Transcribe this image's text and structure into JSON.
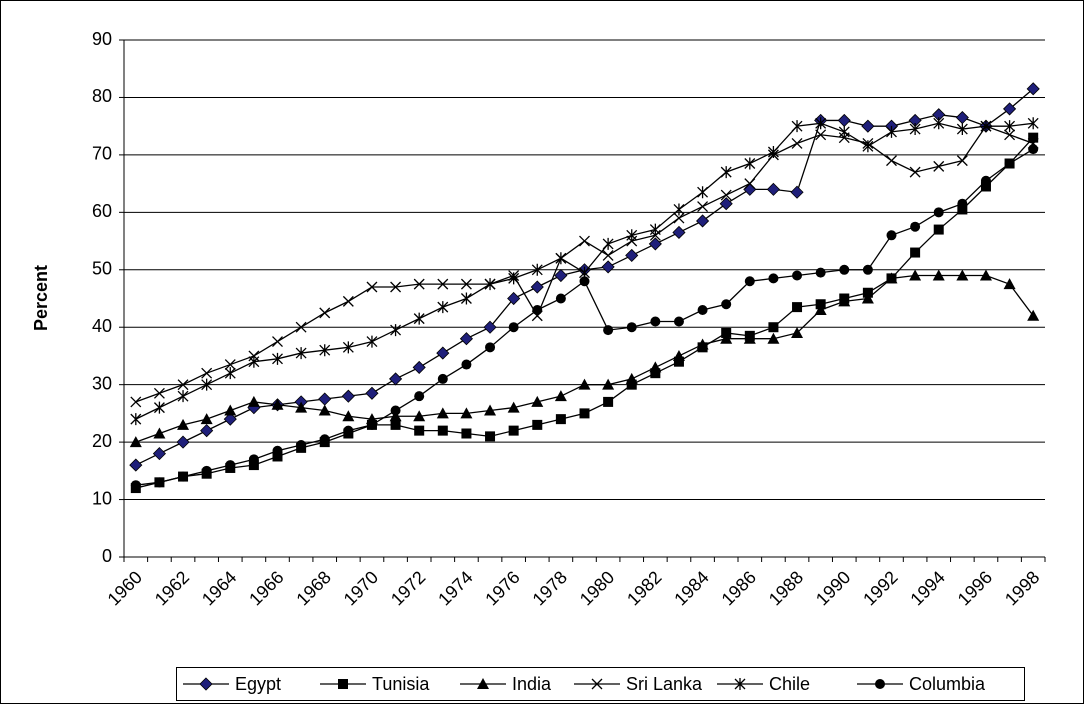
{
  "chart_data": {
    "type": "line",
    "y_label": "Percent",
    "categories": [
      "1960",
      null,
      "1962",
      null,
      "1964",
      null,
      "1966",
      null,
      "1968",
      null,
      "1970",
      null,
      "1972",
      null,
      "1974",
      null,
      "1976",
      null,
      "1978",
      null,
      "1980",
      null,
      "1982",
      null,
      "1984",
      null,
      "1986",
      null,
      "1988",
      null,
      "1990",
      null,
      "1992",
      null,
      "1994",
      null,
      "1996",
      null,
      "1998"
    ],
    "ylim": [
      0,
      90
    ],
    "yticks": [
      0,
      10,
      20,
      30,
      40,
      50,
      60,
      70,
      80,
      90
    ],
    "grid": true,
    "legend": "bottom",
    "line_color": "#000000",
    "series": [
      {
        "name": "Egypt",
        "color": "#1f1f7a",
        "marker": "diamond",
        "values": [
          16,
          18,
          20,
          22,
          24,
          26,
          26.5,
          27,
          27.5,
          28,
          28.5,
          31,
          33,
          35.5,
          38,
          40,
          45,
          47,
          49,
          50,
          50.5,
          52.5,
          54.5,
          56.5,
          58.5,
          61.5,
          64,
          64,
          63.5,
          76,
          76,
          75,
          75,
          76,
          77,
          76.5,
          75,
          78,
          81.5
        ]
      },
      {
        "name": "Tunisia",
        "color": "#000000",
        "marker": "square",
        "values": [
          12,
          13,
          14,
          14.5,
          15.5,
          16,
          17.5,
          19,
          20,
          21.5,
          23,
          23,
          22,
          22,
          21.5,
          21,
          22,
          23,
          24,
          25,
          27,
          30,
          32,
          34,
          36.5,
          39,
          38.5,
          40,
          43.5,
          44,
          45,
          46,
          48.5,
          53,
          57,
          60.5,
          64.5,
          68.5,
          73
        ]
      },
      {
        "name": "India",
        "color": "#000000",
        "marker": "triangle",
        "values": [
          20,
          21.5,
          23,
          24,
          25.5,
          27,
          26.5,
          26,
          25.5,
          24.5,
          24,
          24.5,
          24.5,
          25,
          25,
          25.5,
          26,
          27,
          28,
          30,
          30,
          31,
          33,
          35,
          37,
          38,
          38,
          38,
          39,
          43,
          44.5,
          45,
          48.5,
          49,
          49,
          49,
          49,
          47.5,
          42
        ]
      },
      {
        "name": "Sri Lanka",
        "color": "#000000",
        "marker": "x",
        "values": [
          27,
          28.5,
          30,
          32,
          33.5,
          35,
          37.5,
          40,
          42.5,
          44.5,
          47,
          47,
          47.5,
          47.5,
          47.5,
          47.5,
          49,
          42,
          52,
          55,
          52.5,
          55,
          56,
          59,
          61,
          63,
          65,
          70,
          72,
          73.5,
          73,
          72,
          69,
          67,
          68,
          69,
          75,
          73.5,
          72
        ]
      },
      {
        "name": "Chile",
        "color": "#000000",
        "marker": "star",
        "values": [
          24,
          26,
          28,
          30,
          32,
          34,
          34.5,
          35.5,
          36,
          36.5,
          37.5,
          39.5,
          41.5,
          43.5,
          45,
          47.5,
          48.5,
          50,
          52,
          49.5,
          54.5,
          56,
          57,
          60.5,
          63.5,
          67,
          68.5,
          70.5,
          75,
          75.5,
          74,
          71.5,
          74,
          74.5,
          75.5,
          74.5,
          75,
          75,
          75.5
        ]
      },
      {
        "name": "Columbia",
        "color": "#000000",
        "marker": "circle",
        "values": [
          12.5,
          13,
          14,
          15,
          16,
          17,
          18.5,
          19.5,
          20.5,
          22,
          23,
          25.5,
          28,
          31,
          33.5,
          36.5,
          40,
          43,
          45,
          48,
          39.5,
          40,
          41,
          41,
          43,
          44,
          48,
          48.5,
          49,
          49.5,
          50,
          50,
          56,
          57.5,
          60,
          61.5,
          65.5,
          68.5,
          71
        ]
      }
    ]
  }
}
